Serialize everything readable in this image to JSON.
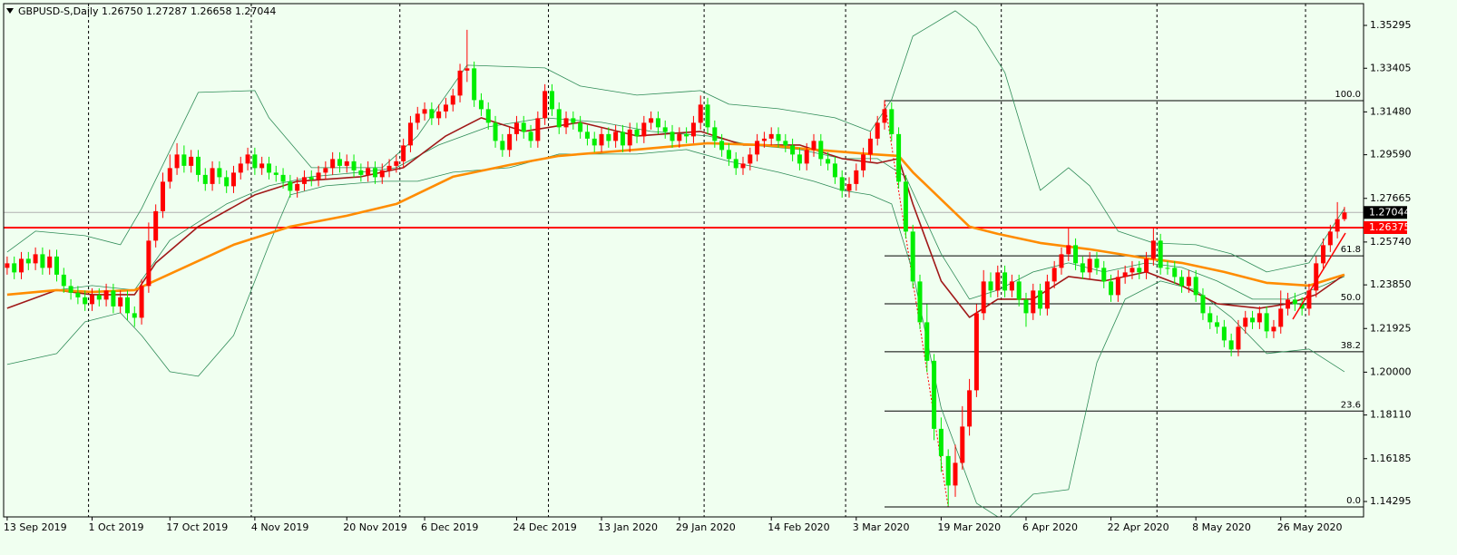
{
  "chart_data": {
    "type": "candlestick",
    "title": "GBPUSD-S,Daily  1.26750 1.27287 1.26658 1.27044",
    "open": [
      1.246,
      1.248,
      1.244,
      1.25,
      1.248,
      1.252,
      1.246,
      1.251,
      1.243,
      1.238,
      1.235,
      1.233,
      1.23,
      1.234,
      1.232,
      1.236,
      1.229,
      1.233,
      1.226,
      1.224,
      1.238,
      1.258,
      1.271,
      1.284,
      1.29,
      1.296,
      1.291,
      1.295,
      1.287,
      1.283,
      1.29,
      1.286,
      1.282,
      1.288,
      1.292,
      1.296,
      1.29,
      1.292,
      1.288,
      1.287,
      1.284,
      1.28,
      1.283,
      1.286,
      1.285,
      1.288,
      1.29,
      1.294,
      1.291,
      1.293,
      1.289,
      1.287,
      1.29,
      1.286,
      1.289,
      1.291,
      1.293,
      1.3,
      1.31,
      1.314,
      1.316,
      1.312,
      1.315,
      1.318,
      1.322,
      1.333,
      1.334,
      1.32,
      1.316,
      1.31,
      1.302,
      1.298,
      1.305,
      1.31,
      1.306,
      1.302,
      1.312,
      1.324,
      1.316,
      1.308,
      1.312,
      1.31,
      1.306,
      1.303,
      1.3,
      1.305,
      1.302,
      1.306,
      1.3,
      1.307,
      1.304,
      1.31,
      1.312,
      1.308,
      1.306,
      1.302,
      1.305,
      1.304,
      1.31,
      1.318,
      1.308,
      1.302,
      1.298,
      1.294,
      1.29,
      1.292,
      1.296,
      1.302,
      1.303,
      1.305,
      1.302,
      1.3,
      1.296,
      1.292,
      1.298,
      1.302,
      1.294,
      1.292,
      1.286,
      1.28,
      1.283,
      1.289,
      1.296,
      1.303,
      1.31,
      1.316,
      1.305,
      1.284,
      1.262,
      1.24,
      1.222,
      1.205,
      1.175,
      1.163,
      1.15,
      1.16,
      1.176,
      1.192,
      1.226,
      1.24,
      1.236,
      1.244,
      1.236,
      1.24,
      1.232,
      1.226,
      1.236,
      1.228,
      1.24,
      1.246,
      1.252,
      1.256,
      1.248,
      1.244,
      1.25,
      1.246,
      1.24,
      1.234,
      1.242,
      1.244,
      1.246,
      1.244,
      1.25,
      1.258,
      1.246,
      1.246,
      1.242,
      1.238,
      1.242,
      1.234,
      1.226,
      1.222,
      1.22,
      1.214,
      1.21,
      1.22,
      1.224,
      1.222,
      1.226,
      1.218,
      1.22,
      1.228,
      1.232,
      1.23,
      1.228,
      1.236,
      1.248,
      1.256,
      1.262,
      1.2675
    ],
    "high": [
      1.251,
      1.251,
      1.253,
      1.253,
      1.255,
      1.255,
      1.254,
      1.254,
      1.246,
      1.241,
      1.238,
      1.236,
      1.237,
      1.237,
      1.239,
      1.239,
      1.236,
      1.236,
      1.229,
      1.241,
      1.266,
      1.274,
      1.288,
      1.296,
      1.301,
      1.3,
      1.298,
      1.298,
      1.29,
      1.293,
      1.293,
      1.289,
      1.291,
      1.295,
      1.299,
      1.299,
      1.295,
      1.295,
      1.291,
      1.29,
      1.287,
      1.286,
      1.289,
      1.289,
      1.291,
      1.293,
      1.297,
      1.297,
      1.296,
      1.296,
      1.292,
      1.293,
      1.293,
      1.292,
      1.294,
      1.296,
      1.303,
      1.313,
      1.317,
      1.319,
      1.319,
      1.318,
      1.321,
      1.325,
      1.336,
      1.351,
      1.337,
      1.323,
      1.319,
      1.313,
      1.305,
      1.308,
      1.313,
      1.313,
      1.309,
      1.315,
      1.327,
      1.327,
      1.319,
      1.315,
      1.315,
      1.313,
      1.309,
      1.306,
      1.308,
      1.308,
      1.309,
      1.309,
      1.31,
      1.31,
      1.313,
      1.315,
      1.315,
      1.311,
      1.309,
      1.308,
      1.308,
      1.313,
      1.322,
      1.321,
      1.311,
      1.305,
      1.301,
      1.297,
      1.295,
      1.299,
      1.305,
      1.306,
      1.308,
      1.308,
      1.305,
      1.303,
      1.299,
      1.301,
      1.305,
      1.305,
      1.297,
      1.295,
      1.289,
      1.286,
      1.292,
      1.299,
      1.306,
      1.313,
      1.32,
      1.319,
      1.308,
      1.287,
      1.265,
      1.243,
      1.23,
      1.208,
      1.18,
      1.166,
      1.168,
      1.185,
      1.197,
      1.23,
      1.245,
      1.244,
      1.247,
      1.247,
      1.243,
      1.243,
      1.235,
      1.239,
      1.239,
      1.243,
      1.249,
      1.255,
      1.264,
      1.259,
      1.251,
      1.253,
      1.253,
      1.249,
      1.243,
      1.245,
      1.247,
      1.249,
      1.249,
      1.253,
      1.264,
      1.261,
      1.249,
      1.249,
      1.245,
      1.245,
      1.245,
      1.237,
      1.229,
      1.225,
      1.223,
      1.217,
      1.223,
      1.227,
      1.227,
      1.229,
      1.229,
      1.223,
      1.236,
      1.235,
      1.235,
      1.233,
      1.239,
      1.251,
      1.259,
      1.265,
      1.275,
      1.2729
    ],
    "low": [
      1.243,
      1.241,
      1.241,
      1.245,
      1.245,
      1.243,
      1.243,
      1.24,
      1.235,
      1.232,
      1.23,
      1.227,
      1.227,
      1.229,
      1.229,
      1.226,
      1.226,
      1.223,
      1.22,
      1.221,
      1.235,
      1.255,
      1.268,
      1.281,
      1.287,
      1.288,
      1.288,
      1.284,
      1.28,
      1.28,
      1.283,
      1.279,
      1.279,
      1.285,
      1.289,
      1.287,
      1.287,
      1.285,
      1.284,
      1.281,
      1.277,
      1.277,
      1.28,
      1.282,
      1.282,
      1.285,
      1.287,
      1.288,
      1.288,
      1.286,
      1.284,
      1.284,
      1.283,
      1.283,
      1.286,
      1.288,
      1.29,
      1.297,
      1.307,
      1.311,
      1.309,
      1.309,
      1.312,
      1.315,
      1.319,
      1.328,
      1.317,
      1.313,
      1.307,
      1.299,
      1.295,
      1.295,
      1.302,
      1.303,
      1.299,
      1.299,
      1.309,
      1.313,
      1.305,
      1.305,
      1.307,
      1.303,
      1.3,
      1.297,
      1.297,
      1.299,
      1.299,
      1.297,
      1.297,
      1.301,
      1.301,
      1.307,
      1.305,
      1.303,
      1.299,
      1.299,
      1.301,
      1.301,
      1.307,
      1.305,
      1.299,
      1.295,
      1.291,
      1.287,
      1.287,
      1.289,
      1.293,
      1.299,
      1.3,
      1.299,
      1.297,
      1.293,
      1.289,
      1.289,
      1.295,
      1.291,
      1.289,
      1.283,
      1.277,
      1.277,
      1.28,
      1.286,
      1.293,
      1.3,
      1.307,
      1.302,
      1.281,
      1.259,
      1.237,
      1.219,
      1.2,
      1.17,
      1.156,
      1.141,
      1.145,
      1.157,
      1.172,
      1.189,
      1.223,
      1.233,
      1.233,
      1.233,
      1.233,
      1.229,
      1.22,
      1.223,
      1.225,
      1.225,
      1.237,
      1.243,
      1.249,
      1.245,
      1.241,
      1.241,
      1.243,
      1.237,
      1.231,
      1.231,
      1.239,
      1.241,
      1.241,
      1.241,
      1.247,
      1.243,
      1.243,
      1.239,
      1.235,
      1.235,
      1.231,
      1.223,
      1.219,
      1.217,
      1.211,
      1.207,
      1.207,
      1.217,
      1.219,
      1.219,
      1.215,
      1.215,
      1.217,
      1.225,
      1.227,
      1.225,
      1.225,
      1.233,
      1.245,
      1.253,
      1.259,
      1.2666
    ],
    "close": [
      1.248,
      1.244,
      1.25,
      1.248,
      1.252,
      1.246,
      1.251,
      1.243,
      1.238,
      1.235,
      1.233,
      1.23,
      1.234,
      1.232,
      1.236,
      1.229,
      1.233,
      1.226,
      1.224,
      1.238,
      1.258,
      1.271,
      1.284,
      1.29,
      1.296,
      1.291,
      1.295,
      1.287,
      1.283,
      1.29,
      1.286,
      1.282,
      1.288,
      1.292,
      1.296,
      1.29,
      1.292,
      1.288,
      1.287,
      1.284,
      1.28,
      1.283,
      1.286,
      1.285,
      1.288,
      1.29,
      1.294,
      1.291,
      1.293,
      1.289,
      1.287,
      1.29,
      1.286,
      1.289,
      1.291,
      1.293,
      1.3,
      1.31,
      1.314,
      1.316,
      1.312,
      1.315,
      1.318,
      1.322,
      1.333,
      1.334,
      1.32,
      1.316,
      1.31,
      1.302,
      1.298,
      1.305,
      1.31,
      1.306,
      1.302,
      1.312,
      1.324,
      1.316,
      1.308,
      1.312,
      1.31,
      1.306,
      1.303,
      1.3,
      1.305,
      1.302,
      1.306,
      1.3,
      1.307,
      1.304,
      1.31,
      1.312,
      1.308,
      1.306,
      1.302,
      1.305,
      1.304,
      1.31,
      1.318,
      1.308,
      1.302,
      1.298,
      1.294,
      1.29,
      1.292,
      1.296,
      1.302,
      1.303,
      1.305,
      1.302,
      1.3,
      1.296,
      1.292,
      1.298,
      1.302,
      1.294,
      1.292,
      1.286,
      1.28,
      1.283,
      1.289,
      1.296,
      1.303,
      1.31,
      1.316,
      1.305,
      1.284,
      1.262,
      1.24,
      1.222,
      1.205,
      1.175,
      1.163,
      1.15,
      1.16,
      1.176,
      1.192,
      1.226,
      1.24,
      1.236,
      1.244,
      1.236,
      1.24,
      1.232,
      1.226,
      1.236,
      1.228,
      1.24,
      1.246,
      1.252,
      1.256,
      1.248,
      1.244,
      1.25,
      1.246,
      1.24,
      1.234,
      1.242,
      1.244,
      1.246,
      1.244,
      1.25,
      1.258,
      1.246,
      1.246,
      1.242,
      1.238,
      1.242,
      1.234,
      1.226,
      1.222,
      1.22,
      1.214,
      1.21,
      1.22,
      1.224,
      1.222,
      1.226,
      1.218,
      1.22,
      1.228,
      1.232,
      1.23,
      1.228,
      1.236,
      1.248,
      1.256,
      1.262,
      1.2675,
      1.27044
    ],
    "up_color": "#ff0000",
    "down_color": "#00ee00",
    "xlim": [
      -0.5,
      191.7
    ],
    "ylim": [
      1.13615,
      1.36415
    ],
    "yticks": [
      1.35295,
      1.33405,
      {
        "value": 1.3148,
        "label": "1.31480"
      },
      {
        "value": 1.2959,
        "label": "1.29590"
      },
      1.27665,
      {
        "value": 1.2574,
        "label": "1.25740"
      },
      {
        "value": 1.2385,
        "label": "1.23850"
      },
      1.21925,
      {
        "value": 1.2,
        "label": "1.20000"
      },
      {
        "value": 1.1811,
        "label": "1.18110"
      },
      1.16185,
      1.14295
    ],
    "xticks": [
      {
        "value": 0,
        "label": "13 Sep 2019"
      },
      {
        "value": 12,
        "label": "1 Oct 2019"
      },
      {
        "value": 23,
        "label": "17 Oct 2019"
      },
      {
        "value": 35,
        "label": "4 Nov 2019"
      },
      {
        "value": 48,
        "label": "20 Nov 2019"
      },
      {
        "value": 59,
        "label": "6 Dec 2019"
      },
      {
        "value": 72,
        "label": "24 Dec 2019"
      },
      {
        "value": 84,
        "label": "13 Jan 2020"
      },
      {
        "value": 95,
        "label": "29 Jan 2020"
      },
      {
        "value": 108,
        "label": "14 Feb 2020"
      },
      {
        "value": 120,
        "label": "3 Mar 2020"
      },
      {
        "value": 132,
        "label": "19 Mar 2020"
      },
      {
        "value": 144,
        "label": "6 Apr 2020"
      },
      {
        "value": 156,
        "label": "22 Apr 2020"
      },
      {
        "value": 168,
        "label": "8 May 2020"
      },
      {
        "value": 180,
        "label": "26 May 2020"
      }
    ],
    "separators": [
      12,
      35,
      56,
      77,
      99,
      119,
      141,
      163,
      184
    ],
    "lines": [
      {
        "color": "#2e8b57",
        "width": 0.8,
        "x": [
          0,
          4,
          11,
          16,
          19,
          27,
          35,
          37,
          43,
          53,
          58,
          65,
          76,
          81,
          89,
          98,
          102,
          109,
          117,
          122,
          125,
          128,
          134,
          137,
          141,
          146,
          150,
          153,
          157,
          162,
          168,
          173,
          178,
          184,
          189
        ],
        "values": [
          1.253,
          1.2622,
          1.2602,
          1.2562,
          1.2722,
          1.3234,
          1.3242,
          1.3122,
          1.2902,
          1.2902,
          1.3042,
          1.3354,
          1.3342,
          1.3262,
          1.3222,
          1.3242,
          1.3182,
          1.3162,
          1.3122,
          1.3062,
          1.3202,
          1.3482,
          1.3594,
          1.3522,
          1.3322,
          1.2802,
          1.2902,
          1.2822,
          1.2622,
          1.257,
          1.2562,
          1.2522,
          1.2442,
          1.2482,
          1.2722
        ]
      },
      {
        "color": "#2e8b57",
        "width": 0.8,
        "x": [
          0,
          7,
          11,
          16,
          19,
          23,
          27,
          32,
          37,
          40,
          45,
          53,
          58,
          63,
          71,
          78,
          89,
          96,
          102,
          109,
          114,
          118,
          122,
          125,
          128,
          132,
          137,
          141,
          145,
          150,
          154,
          158,
          163,
          168,
          173,
          178,
          184,
          189
        ],
        "values": [
          1.2034,
          1.2082,
          1.2222,
          1.2262,
          1.2162,
          1.2002,
          1.1982,
          1.2162,
          1.2562,
          1.2782,
          1.2822,
          1.2842,
          1.2842,
          1.2882,
          1.2902,
          1.2962,
          1.2962,
          1.2982,
          1.293,
          1.2882,
          1.2842,
          1.2802,
          1.2782,
          1.2742,
          1.2442,
          1.1842,
          1.1422,
          1.1342,
          1.1462,
          1.1482,
          1.2042,
          1.2322,
          1.2402,
          1.2362,
          1.2242,
          1.2082,
          1.2102,
          1.2002
        ]
      },
      {
        "color": "#2e8b57",
        "width": 0.8,
        "x": [
          0,
          7,
          12,
          18,
          23,
          31,
          37,
          43,
          50,
          55,
          61,
          68,
          76,
          84,
          91,
          99,
          105,
          112,
          118,
          123,
          127,
          132,
          136,
          140,
          145,
          150,
          155,
          161,
          166,
          171,
          176,
          181,
          186,
          189
        ],
        "values": [
          1.2282,
          1.2362,
          1.2382,
          1.2362,
          1.2582,
          1.2742,
          1.2822,
          1.2862,
          1.2882,
          1.2902,
          1.3002,
          1.3082,
          1.3122,
          1.3102,
          1.3062,
          1.3042,
          1.3002,
          1.2982,
          1.2942,
          1.2942,
          1.2862,
          1.2522,
          1.2322,
          1.2362,
          1.2442,
          1.2482,
          1.2442,
          1.2482,
          1.2462,
          1.2402,
          1.2322,
          1.2322,
          1.2382,
          1.2422
        ]
      },
      {
        "color": "#a01818",
        "width": 1.6,
        "x": [
          0,
          7,
          12,
          18,
          21,
          27,
          35,
          41,
          50,
          56,
          62,
          67,
          73,
          81,
          89,
          98,
          104,
          112,
          118,
          123,
          126,
          128,
          132,
          136,
          140,
          145,
          150,
          155,
          161,
          166,
          171,
          177,
          181,
          185,
          189
        ],
        "values": [
          1.2282,
          1.2362,
          1.2342,
          1.2342,
          1.2482,
          1.2642,
          1.2782,
          1.2842,
          1.2862,
          1.2902,
          1.3042,
          1.3122,
          1.3062,
          1.3102,
          1.3042,
          1.3062,
          1.3002,
          1.3002,
          1.2942,
          1.2922,
          1.2942,
          1.2742,
          1.2402,
          1.2242,
          1.2322,
          1.2322,
          1.2422,
          1.2402,
          1.2442,
          1.2382,
          1.2302,
          1.2282,
          1.2302,
          1.2342,
          1.243
        ]
      },
      {
        "color": "#ff8c00",
        "width": 2.6,
        "x": [
          0,
          7,
          12,
          18,
          25,
          32,
          40,
          48,
          55,
          63,
          71,
          78,
          89,
          99,
          107,
          114,
          122,
          126,
          128,
          132,
          136,
          140,
          146,
          153,
          161,
          166,
          172,
          178,
          184,
          189
        ],
        "values": [
          1.2342,
          1.2362,
          1.2354,
          1.2362,
          1.2462,
          1.2562,
          1.2642,
          1.269,
          1.2742,
          1.2862,
          1.2914,
          1.2954,
          1.2982,
          1.301,
          1.3002,
          1.2982,
          1.2962,
          1.2954,
          1.2882,
          1.2762,
          1.2642,
          1.261,
          1.257,
          1.2542,
          1.2502,
          1.2482,
          1.2442,
          1.2394,
          1.2382,
          1.243
        ]
      }
    ],
    "hlines": [
      {
        "value": 1.26375,
        "color": "#ff0000"
      }
    ],
    "last_price": 1.27044,
    "fibonacci": {
      "start": 124,
      "low_bar": 133,
      "high": 1.31975,
      "low": 1.14055,
      "levels": [
        {
          "value": 100,
          "label": "100.0"
        },
        61.8,
        {
          "value": 50,
          "label": "50.0"
        },
        38.2,
        23.6,
        {
          "value": 0,
          "label": "0.0"
        }
      ]
    }
  }
}
